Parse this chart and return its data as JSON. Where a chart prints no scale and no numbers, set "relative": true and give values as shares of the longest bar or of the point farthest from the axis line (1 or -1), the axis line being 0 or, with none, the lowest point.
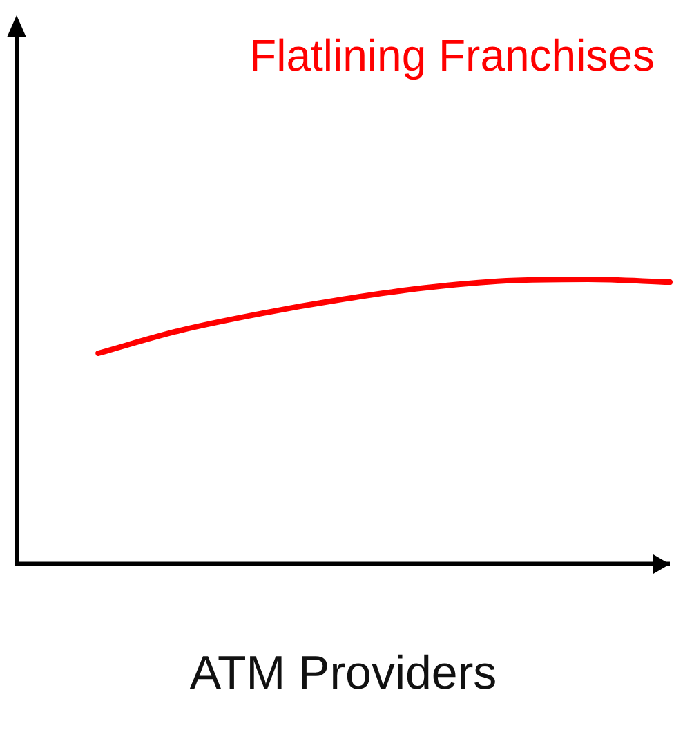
{
  "chart_data": {
    "type": "line",
    "title": "Flatlining Franchises",
    "xlabel": "ATM Providers",
    "relative": true,
    "categories": [
      null,
      null,
      null,
      null,
      null,
      null,
      null,
      null,
      null
    ],
    "series": [
      {
        "color": "#ff0000",
        "values": [
          null,
          0.74,
          0.82,
          0.88,
          0.93,
          0.97,
          0.995,
          1,
          0.99
        ]
      }
    ],
    "marker": "none",
    "line_style": "solid",
    "grid": false,
    "legend": false
  }
}
